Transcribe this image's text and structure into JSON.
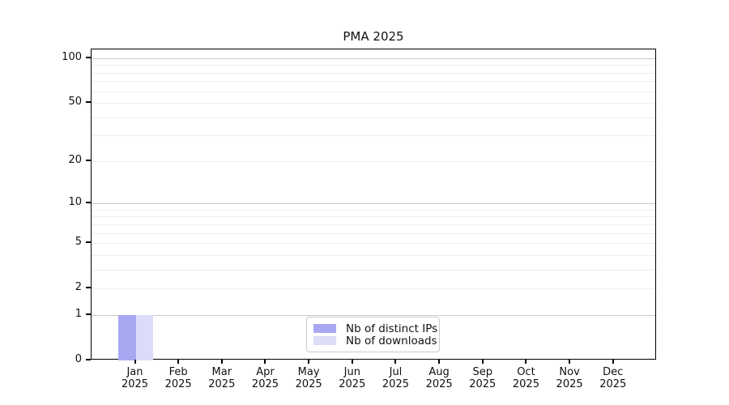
{
  "chart_data": {
    "type": "bar",
    "title": "PMA 2025",
    "categories": [
      "Jan 2025",
      "Feb 2025",
      "Mar 2025",
      "Apr 2025",
      "May 2025",
      "Jun 2025",
      "Jul 2025",
      "Aug 2025",
      "Sep 2025",
      "Oct 2025",
      "Nov 2025",
      "Dec 2025"
    ],
    "series": [
      {
        "name": "Nb of distinct IPs",
        "color": "#a8a8f2",
        "values": [
          1,
          0,
          0,
          0,
          0,
          0,
          0,
          0,
          0,
          0,
          0,
          0
        ]
      },
      {
        "name": "Nb of downloads",
        "color": "#dcdcf8",
        "values": [
          1,
          0,
          0,
          0,
          0,
          0,
          0,
          0,
          0,
          0,
          0,
          0
        ]
      }
    ],
    "xlabel": "",
    "ylabel": "",
    "y_scale": "log1p",
    "y_ticks": [
      0,
      1,
      2,
      5,
      10,
      20,
      50,
      100
    ],
    "y_minor_gridlines": [
      2,
      3,
      4,
      5,
      6,
      7,
      8,
      9,
      20,
      30,
      40,
      50,
      60,
      70,
      80,
      90
    ],
    "y_major_gridlines": [
      1,
      10,
      100
    ],
    "ylim": [
      0,
      115
    ],
    "grid": "horizontal",
    "legend_position": "bottom-center",
    "colors": {
      "major_grid": "#c9c9c9",
      "minor_grid": "#ededed",
      "spine": "#000000",
      "text": "#111111"
    }
  }
}
